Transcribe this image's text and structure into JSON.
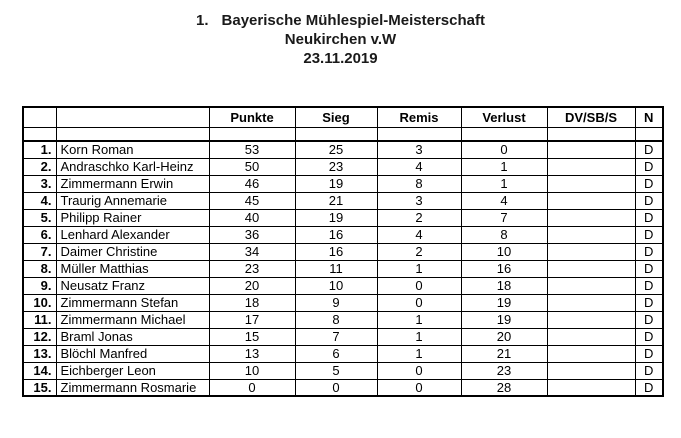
{
  "page": {
    "background_color": "#ffffff",
    "text_color": "#000000",
    "border_color": "#000000"
  },
  "title": {
    "number": "1.",
    "line1": "Bayerische Mühlespiel-Meisterschaft",
    "line2": "Neukirchen v.W",
    "line3": "23.11.2019"
  },
  "table": {
    "headers": [
      "",
      "",
      "Punkte",
      "Sieg",
      "Remis",
      "Verlust",
      "DV/SB/S",
      "N"
    ],
    "columns_keys": [
      "rank",
      "name",
      "punkte",
      "sieg",
      "remis",
      "verlust",
      "dv_sb_s",
      "n"
    ],
    "rows": [
      {
        "rank": "1.",
        "name": "Korn Roman",
        "punkte": "53",
        "sieg": "25",
        "remis": "3",
        "verlust": "0",
        "dv_sb_s": "",
        "n": "D"
      },
      {
        "rank": "2.",
        "name": "Andraschko Karl-Heinz",
        "punkte": "50",
        "sieg": "23",
        "remis": "4",
        "verlust": "1",
        "dv_sb_s": "",
        "n": "D"
      },
      {
        "rank": "3.",
        "name": "Zimmermann Erwin",
        "punkte": "46",
        "sieg": "19",
        "remis": "8",
        "verlust": "1",
        "dv_sb_s": "",
        "n": "D"
      },
      {
        "rank": "4.",
        "name": "Traurig Annemarie",
        "punkte": "45",
        "sieg": "21",
        "remis": "3",
        "verlust": "4",
        "dv_sb_s": "",
        "n": "D"
      },
      {
        "rank": "5.",
        "name": "Philipp Rainer",
        "punkte": "40",
        "sieg": "19",
        "remis": "2",
        "verlust": "7",
        "dv_sb_s": "",
        "n": "D"
      },
      {
        "rank": "6.",
        "name": "Lenhard Alexander",
        "punkte": "36",
        "sieg": "16",
        "remis": "4",
        "verlust": "8",
        "dv_sb_s": "",
        "n": "D"
      },
      {
        "rank": "7.",
        "name": "Daimer Christine",
        "punkte": "34",
        "sieg": "16",
        "remis": "2",
        "verlust": "10",
        "dv_sb_s": "",
        "n": "D"
      },
      {
        "rank": "8.",
        "name": "Müller Matthias",
        "punkte": "23",
        "sieg": "11",
        "remis": "1",
        "verlust": "16",
        "dv_sb_s": "",
        "n": "D"
      },
      {
        "rank": "9.",
        "name": "Neusatz Franz",
        "punkte": "20",
        "sieg": "10",
        "remis": "0",
        "verlust": "18",
        "dv_sb_s": "",
        "n": "D"
      },
      {
        "rank": "10.",
        "name": "Zimmermann Stefan",
        "punkte": "18",
        "sieg": "9",
        "remis": "0",
        "verlust": "19",
        "dv_sb_s": "",
        "n": "D"
      },
      {
        "rank": "11.",
        "name": "Zimmermann Michael",
        "punkte": "17",
        "sieg": "8",
        "remis": "1",
        "verlust": "19",
        "dv_sb_s": "",
        "n": "D"
      },
      {
        "rank": "12.",
        "name": "Braml Jonas",
        "punkte": "15",
        "sieg": "7",
        "remis": "1",
        "verlust": "20",
        "dv_sb_s": "",
        "n": "D"
      },
      {
        "rank": "13.",
        "name": "Blöchl Manfred",
        "punkte": "13",
        "sieg": "6",
        "remis": "1",
        "verlust": "21",
        "dv_sb_s": "",
        "n": "D"
      },
      {
        "rank": "14.",
        "name": "Eichberger Leon",
        "punkte": "10",
        "sieg": "5",
        "remis": "0",
        "verlust": "23",
        "dv_sb_s": "",
        "n": "D"
      },
      {
        "rank": "15.",
        "name": "Zimmermann Rosmarie",
        "punkte": "0",
        "sieg": "0",
        "remis": "0",
        "verlust": "28",
        "dv_sb_s": "",
        "n": "D"
      }
    ]
  }
}
